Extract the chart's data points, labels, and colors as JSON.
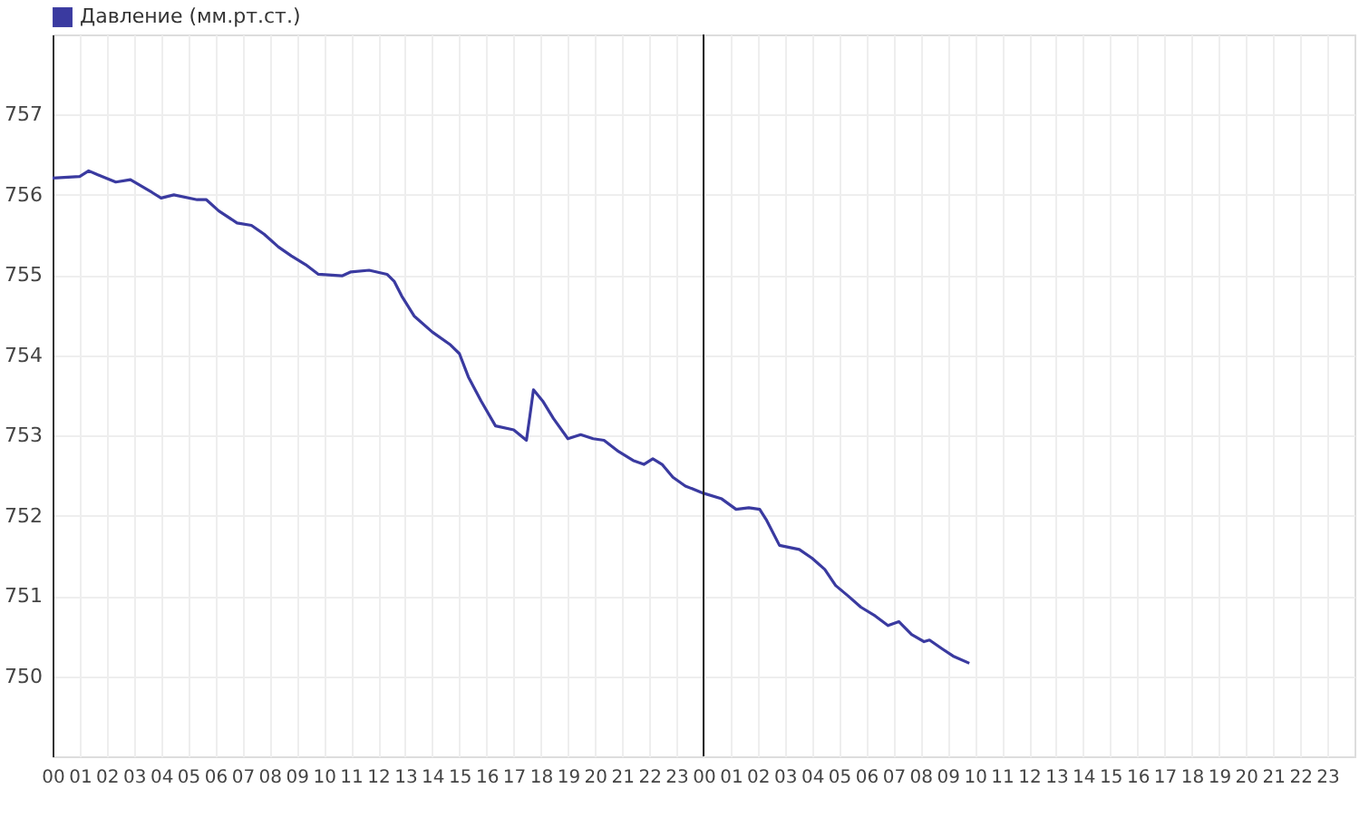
{
  "chart_data": {
    "type": "line",
    "legend": "top left",
    "grid": true,
    "marker": "none",
    "line_style": "solid",
    "xlim": [
      0,
      48
    ],
    "ylim": [
      749,
      758
    ],
    "yticks": [
      750,
      751,
      752,
      753,
      754,
      755,
      756,
      757
    ],
    "xticks": [
      {
        "value": 0,
        "label": "00"
      },
      {
        "value": 1,
        "label": "01"
      },
      {
        "value": 2,
        "label": "02"
      },
      {
        "value": 3,
        "label": "03"
      },
      {
        "value": 4,
        "label": "04"
      },
      {
        "value": 5,
        "label": "05"
      },
      {
        "value": 6,
        "label": "06"
      },
      {
        "value": 7,
        "label": "07"
      },
      {
        "value": 8,
        "label": "08"
      },
      {
        "value": 9,
        "label": "09"
      },
      {
        "value": 10,
        "label": "10"
      },
      {
        "value": 11,
        "label": "11"
      },
      {
        "value": 12,
        "label": "12"
      },
      {
        "value": 13,
        "label": "13"
      },
      {
        "value": 14,
        "label": "14"
      },
      {
        "value": 15,
        "label": "15"
      },
      {
        "value": 16,
        "label": "16"
      },
      {
        "value": 17,
        "label": "17"
      },
      {
        "value": 18,
        "label": "18"
      },
      {
        "value": 19,
        "label": "19"
      },
      {
        "value": 20,
        "label": "20"
      },
      {
        "value": 21,
        "label": "21"
      },
      {
        "value": 22,
        "label": "22"
      },
      {
        "value": 23,
        "label": "23"
      },
      {
        "value": 24,
        "label": "00"
      },
      {
        "value": 25,
        "label": "01"
      },
      {
        "value": 26,
        "label": "02"
      },
      {
        "value": 27,
        "label": "03"
      },
      {
        "value": 28,
        "label": "04"
      },
      {
        "value": 29,
        "label": "05"
      },
      {
        "value": 30,
        "label": "06"
      },
      {
        "value": 31,
        "label": "07"
      },
      {
        "value": 32,
        "label": "08"
      },
      {
        "value": 33,
        "label": "09"
      },
      {
        "value": 34,
        "label": "10"
      },
      {
        "value": 35,
        "label": "11"
      },
      {
        "value": 36,
        "label": "12"
      },
      {
        "value": 37,
        "label": "13"
      },
      {
        "value": 38,
        "label": "14"
      },
      {
        "value": 39,
        "label": "15"
      },
      {
        "value": 40,
        "label": "16"
      },
      {
        "value": 41,
        "label": "17"
      },
      {
        "value": 42,
        "label": "18"
      },
      {
        "value": 43,
        "label": "19"
      },
      {
        "value": 44,
        "label": "20"
      },
      {
        "value": 45,
        "label": "21"
      },
      {
        "value": 46,
        "label": "22"
      },
      {
        "value": 47,
        "label": "23"
      }
    ],
    "ref_lines": [
      {
        "axis": "x",
        "value": 24,
        "color": "#222222"
      }
    ],
    "x": [
      0,
      1,
      1.33,
      1.67,
      2.33,
      2.87,
      3.67,
      4,
      4.47,
      5.33,
      5.67,
      6.13,
      6.8,
      7.33,
      7.8,
      8.33,
      8.8,
      9.33,
      9.8,
      10.67,
      11,
      11.67,
      12.33,
      12.6,
      12.87,
      13.33,
      14,
      14.67,
      15,
      15.33,
      15.8,
      16.33,
      17,
      17.47,
      17.6,
      17.73,
      18.07,
      18.47,
      19,
      19.47,
      19.93,
      20.33,
      20.87,
      21.4,
      21.8,
      22.13,
      22.47,
      22.87,
      23.33,
      24,
      24.67,
      25.2,
      25.67,
      26.07,
      26.33,
      26.8,
      27.53,
      28,
      28.47,
      28.87,
      29.33,
      29.8,
      30.33,
      30.8,
      31.2,
      31.67,
      32.13,
      32.33,
      32.8,
      33.2,
      33.8
    ],
    "series": [
      {
        "name": "Давление (мм.рт.ст.)",
        "color": "#3a3aa0",
        "values": [
          756.21,
          756.23,
          756.3,
          756.25,
          756.16,
          756.19,
          756.03,
          755.96,
          756.0,
          755.94,
          755.94,
          755.8,
          755.65,
          755.62,
          755.51,
          755.35,
          755.24,
          755.13,
          755.01,
          754.99,
          755.04,
          755.06,
          755.01,
          754.92,
          754.74,
          754.49,
          754.29,
          754.13,
          754.02,
          753.73,
          753.43,
          753.12,
          753.07,
          752.94,
          753.25,
          753.57,
          753.43,
          753.21,
          752.96,
          753.01,
          752.96,
          752.94,
          752.8,
          752.69,
          752.64,
          752.71,
          752.64,
          752.48,
          752.37,
          752.28,
          752.21,
          752.08,
          752.1,
          752.08,
          751.94,
          751.63,
          751.58,
          751.47,
          751.33,
          751.13,
          751.0,
          750.86,
          750.75,
          750.63,
          750.68,
          750.52,
          750.43,
          750.45,
          750.34,
          750.25,
          750.16
        ]
      }
    ]
  }
}
